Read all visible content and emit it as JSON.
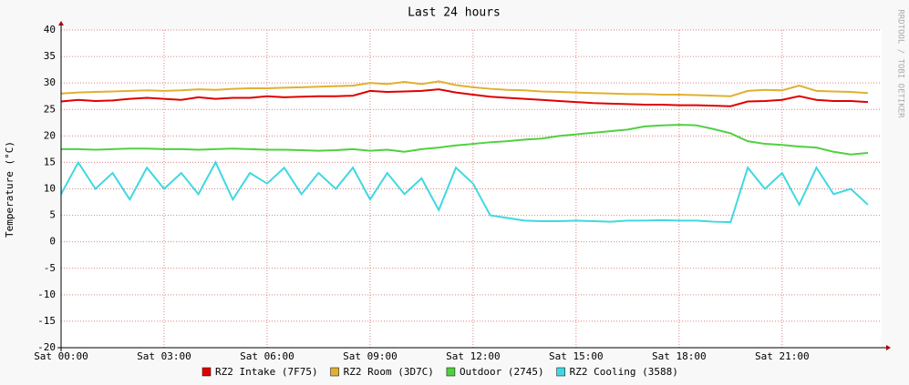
{
  "chart_data": {
    "type": "line",
    "title": "Last 24 hours",
    "ylabel": "Temperature (°C)",
    "watermark": "RRDTOOL / TOBI OETIKER",
    "x": [
      0,
      0.5,
      1,
      1.5,
      2,
      2.5,
      3,
      3.5,
      4,
      4.5,
      5,
      5.5,
      6,
      6.5,
      7,
      7.5,
      8,
      8.5,
      9,
      9.5,
      10,
      10.5,
      11,
      11.5,
      12,
      12.5,
      13,
      13.5,
      14,
      14.5,
      15,
      15.5,
      16,
      16.5,
      17,
      17.5,
      18,
      18.5,
      19,
      19.5,
      20,
      20.5,
      21,
      21.5,
      22,
      22.5,
      23,
      23.5
    ],
    "series": [
      {
        "name": "RZ2 Intake (7F75)",
        "color": "#e00000",
        "values": [
          26.5,
          26.8,
          26.6,
          26.7,
          27,
          27.2,
          27,
          26.8,
          27.3,
          27,
          27.2,
          27.2,
          27.5,
          27.3,
          27.4,
          27.5,
          27.5,
          27.6,
          28.5,
          28.3,
          28.4,
          28.5,
          28.8,
          28.2,
          27.8,
          27.4,
          27.2,
          27,
          26.8,
          26.6,
          26.4,
          26.2,
          26.1,
          26,
          25.9,
          25.9,
          25.8,
          25.8,
          25.7,
          25.6,
          26.5,
          26.6,
          26.8,
          27.5,
          26.8,
          26.6,
          26.6,
          26.4
        ]
      },
      {
        "name": "RZ2 Room (3D7C)",
        "color": "#e0b030",
        "values": [
          28,
          28.2,
          28.3,
          28.4,
          28.5,
          28.6,
          28.5,
          28.6,
          28.8,
          28.7,
          28.9,
          29,
          29,
          29.1,
          29.2,
          29.3,
          29.4,
          29.5,
          30,
          29.8,
          30.2,
          29.8,
          30.3,
          29.6,
          29.2,
          28.9,
          28.7,
          28.6,
          28.4,
          28.3,
          28.2,
          28.1,
          28,
          27.9,
          27.9,
          27.8,
          27.8,
          27.7,
          27.6,
          27.5,
          28.5,
          28.7,
          28.6,
          29.5,
          28.5,
          28.4,
          28.3,
          28.1
        ]
      },
      {
        "name": "Outdoor (2745)",
        "color": "#50d040",
        "values": [
          17.5,
          17.5,
          17.4,
          17.5,
          17.6,
          17.6,
          17.5,
          17.5,
          17.4,
          17.5,
          17.6,
          17.5,
          17.4,
          17.4,
          17.3,
          17.2,
          17.3,
          17.5,
          17.2,
          17.4,
          17,
          17.5,
          17.8,
          18.2,
          18.5,
          18.8,
          19,
          19.3,
          19.5,
          20,
          20.3,
          20.6,
          20.9,
          21.2,
          21.8,
          22,
          22.1,
          22,
          21.3,
          20.5,
          19,
          18.5,
          18.3,
          18,
          17.8,
          17,
          16.5,
          16.8
        ]
      },
      {
        "name": "RZ2 Cooling (3588)",
        "color": "#40d8e0",
        "values": [
          9,
          15,
          10,
          13,
          8,
          14,
          10,
          13,
          9,
          15,
          8,
          13,
          11,
          14,
          9,
          13,
          10,
          14,
          8,
          13,
          9,
          12,
          6,
          14,
          11,
          5,
          4.5,
          4,
          3.9,
          3.9,
          4,
          3.9,
          3.8,
          4,
          4,
          4.1,
          4,
          4,
          3.8,
          3.7,
          14,
          10,
          13,
          7,
          14,
          9,
          10,
          7
        ]
      }
    ],
    "xlim": [
      0,
      23.9
    ],
    "xticks": [
      {
        "value": 0,
        "label": "Sat 00:00"
      },
      {
        "value": 3,
        "label": "Sat 03:00"
      },
      {
        "value": 6,
        "label": "Sat 06:00"
      },
      {
        "value": 9,
        "label": "Sat 09:00"
      },
      {
        "value": 12,
        "label": "Sat 12:00"
      },
      {
        "value": 15,
        "label": "Sat 15:00"
      },
      {
        "value": 18,
        "label": "Sat 18:00"
      },
      {
        "value": 21,
        "label": "Sat 21:00"
      }
    ],
    "ylim": [
      -20,
      40
    ],
    "yticks": [
      -20,
      -15,
      -10,
      -5,
      0,
      5,
      10,
      15,
      20,
      25,
      30,
      35,
      40
    ],
    "grid": true,
    "legend": "bottom"
  }
}
